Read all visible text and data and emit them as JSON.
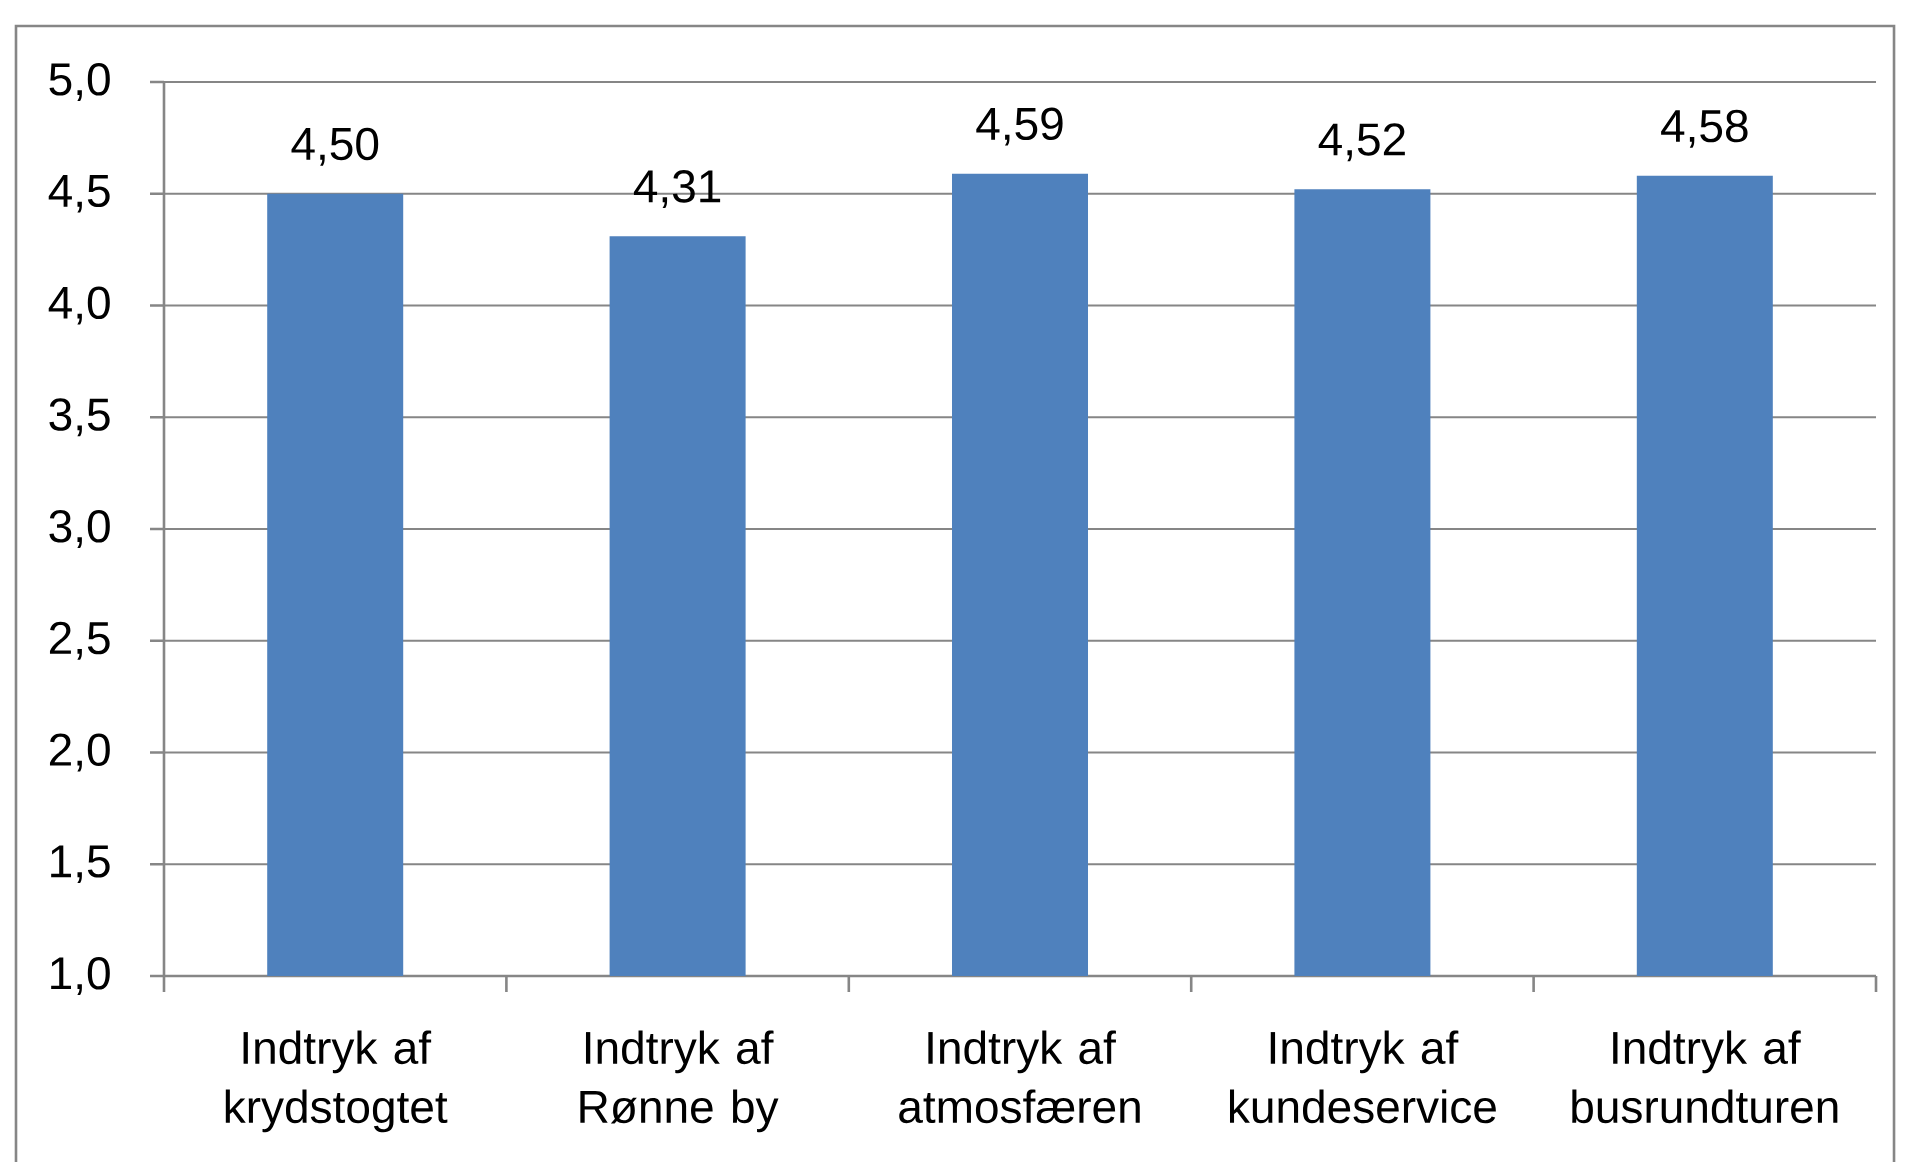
{
  "chart_data": {
    "type": "bar",
    "categories": [
      "Indtryk af krydstogtet",
      "Indtryk af Rønne by",
      "Indtryk af atmosfæren",
      "Indtryk af kundeservice",
      "Indtryk af busrundturen"
    ],
    "values": [
      4.5,
      4.31,
      4.59,
      4.52,
      4.58
    ],
    "value_labels": [
      "4,50",
      "4,31",
      "4,59",
      "4,52",
      "4,58"
    ],
    "color": "#4f81bd",
    "ylim": [
      1,
      5
    ],
    "yticks": [
      {
        "value": 1,
        "label": "1,0"
      },
      {
        "value": 1.5,
        "label": "1,5"
      },
      {
        "value": 2,
        "label": "2,0"
      },
      {
        "value": 2.5,
        "label": "2,5"
      },
      {
        "value": 3,
        "label": "3,0"
      },
      {
        "value": 3.5,
        "label": "3,5"
      },
      {
        "value": 4,
        "label": "4,0"
      },
      {
        "value": 4.5,
        "label": "4,5"
      },
      {
        "value": 5,
        "label": "5,0"
      }
    ],
    "grid": "y"
  }
}
